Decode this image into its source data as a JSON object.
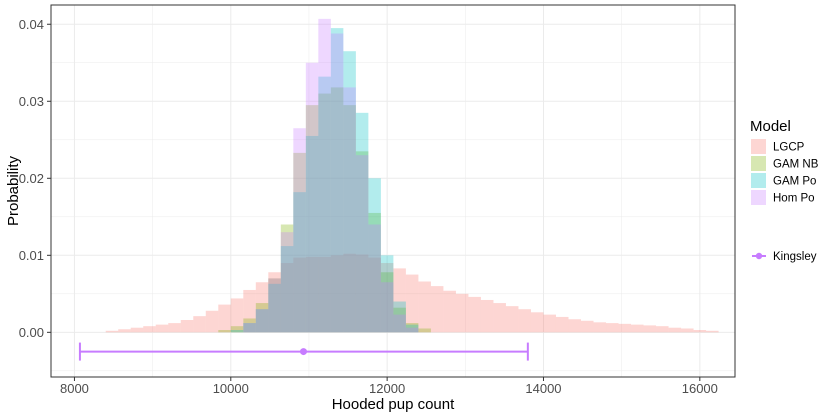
{
  "chart_data": {
    "type": "histogram",
    "xlabel": "Hooded pup count",
    "ylabel": "Probability",
    "xlim": [
      7700,
      16450
    ],
    "ylim": [
      -0.0058,
      0.0425
    ],
    "x_ticks": [
      8000,
      10000,
      12000,
      14000,
      16000
    ],
    "x_tick_labels": [
      "8000",
      "10000",
      "12000",
      "14000",
      "16000"
    ],
    "y_ticks": [
      0.0,
      0.01,
      0.02,
      0.03,
      0.04
    ],
    "y_tick_labels": [
      "0.00",
      "0.01",
      "0.02",
      "0.03",
      "0.04"
    ],
    "grid": true,
    "legend": {
      "title": "Model",
      "position": "right"
    },
    "series": [
      {
        "name": "LGCP",
        "color": "#F8766D",
        "bins": [
          [
            8400,
            8560,
            0.0002
          ],
          [
            8560,
            8720,
            0.0004
          ],
          [
            8720,
            8880,
            0.0006
          ],
          [
            8880,
            9040,
            0.0008
          ],
          [
            9040,
            9200,
            0.001
          ],
          [
            9200,
            9360,
            0.0012
          ],
          [
            9360,
            9520,
            0.0016
          ],
          [
            9520,
            9680,
            0.0021
          ],
          [
            9680,
            9840,
            0.0028
          ],
          [
            9840,
            10000,
            0.0036
          ],
          [
            10000,
            10160,
            0.0044
          ],
          [
            10160,
            10320,
            0.0055
          ],
          [
            10320,
            10480,
            0.0065
          ],
          [
            10480,
            10640,
            0.0078
          ],
          [
            10640,
            10800,
            0.009
          ],
          [
            10800,
            10960,
            0.0097
          ],
          [
            10960,
            11120,
            0.0098
          ],
          [
            11120,
            11280,
            0.0098
          ],
          [
            11280,
            11440,
            0.01
          ],
          [
            11440,
            11600,
            0.0102
          ],
          [
            11600,
            11760,
            0.0101
          ],
          [
            11760,
            11920,
            0.0097
          ],
          [
            11920,
            12080,
            0.009
          ],
          [
            12080,
            12240,
            0.0083
          ],
          [
            12240,
            12400,
            0.0075
          ],
          [
            12400,
            12560,
            0.0066
          ],
          [
            12560,
            12720,
            0.006
          ],
          [
            12720,
            12880,
            0.0054
          ],
          [
            12880,
            13040,
            0.005
          ],
          [
            13040,
            13200,
            0.0046
          ],
          [
            13200,
            13360,
            0.0042
          ],
          [
            13360,
            13520,
            0.0038
          ],
          [
            13520,
            13680,
            0.0034
          ],
          [
            13680,
            13840,
            0.003
          ],
          [
            13840,
            14000,
            0.0026
          ],
          [
            14000,
            14160,
            0.0023
          ],
          [
            14160,
            14320,
            0.002
          ],
          [
            14320,
            14480,
            0.0017
          ],
          [
            14480,
            14640,
            0.0015
          ],
          [
            14640,
            14800,
            0.0013
          ],
          [
            14800,
            14960,
            0.0012
          ],
          [
            14960,
            15120,
            0.0011
          ],
          [
            15120,
            15280,
            0.001
          ],
          [
            15280,
            15440,
            0.0009
          ],
          [
            15440,
            15600,
            0.0008
          ],
          [
            15600,
            15760,
            0.0006
          ],
          [
            15760,
            15920,
            0.0005
          ],
          [
            15920,
            16080,
            0.0003
          ],
          [
            16080,
            16240,
            0.0002
          ]
        ]
      },
      {
        "name": "GAM NB",
        "color": "#7CAE00",
        "bins": [
          [
            9840,
            10000,
            0.0003
          ],
          [
            10000,
            10160,
            0.0008
          ],
          [
            10160,
            10320,
            0.0018
          ],
          [
            10320,
            10480,
            0.0038
          ],
          [
            10480,
            10640,
            0.007
          ],
          [
            10640,
            10800,
            0.014
          ],
          [
            10800,
            10960,
            0.0233
          ],
          [
            10960,
            11120,
            0.0295
          ],
          [
            11120,
            11280,
            0.031
          ],
          [
            11280,
            11440,
            0.0318
          ],
          [
            11440,
            11600,
            0.0295
          ],
          [
            11600,
            11760,
            0.0235
          ],
          [
            11760,
            11920,
            0.0155
          ],
          [
            11920,
            12080,
            0.0078
          ],
          [
            12080,
            12240,
            0.0032
          ],
          [
            12240,
            12400,
            0.0012
          ],
          [
            12400,
            12560,
            0.0005
          ]
        ]
      },
      {
        "name": "GAM Po",
        "color": "#00BFC4",
        "bins": [
          [
            10000,
            10160,
            0.0003
          ],
          [
            10160,
            10320,
            0.0012
          ],
          [
            10320,
            10480,
            0.003
          ],
          [
            10480,
            10640,
            0.0063
          ],
          [
            10640,
            10800,
            0.0112
          ],
          [
            10800,
            10960,
            0.0182
          ],
          [
            10960,
            11120,
            0.0255
          ],
          [
            11120,
            11280,
            0.0332
          ],
          [
            11280,
            11440,
            0.0395
          ],
          [
            11440,
            11600,
            0.0365
          ],
          [
            11600,
            11760,
            0.0285
          ],
          [
            11760,
            11920,
            0.02
          ],
          [
            11920,
            12080,
            0.01
          ],
          [
            12080,
            12240,
            0.004
          ],
          [
            12240,
            12400,
            0.001
          ]
        ]
      },
      {
        "name": "Hom Po",
        "color": "#C77CFF",
        "bins": [
          [
            10160,
            10320,
            0.0012
          ],
          [
            10320,
            10480,
            0.003
          ],
          [
            10480,
            10640,
            0.007
          ],
          [
            10640,
            10800,
            0.013
          ],
          [
            10800,
            10960,
            0.0265
          ],
          [
            10960,
            11120,
            0.035
          ],
          [
            11120,
            11280,
            0.0407
          ],
          [
            11280,
            11440,
            0.0388
          ],
          [
            11440,
            11600,
            0.0318
          ],
          [
            11600,
            11760,
            0.023
          ],
          [
            11760,
            11920,
            0.014
          ],
          [
            11920,
            12080,
            0.0065
          ],
          [
            12080,
            12240,
            0.0023
          ],
          [
            12240,
            12400,
            0.0006
          ]
        ]
      }
    ],
    "interval": {
      "name": "Kingsley",
      "color": "#C77CFF",
      "y": -0.0025,
      "low": 8070,
      "estimate": 10930,
      "high": 13800
    }
  }
}
